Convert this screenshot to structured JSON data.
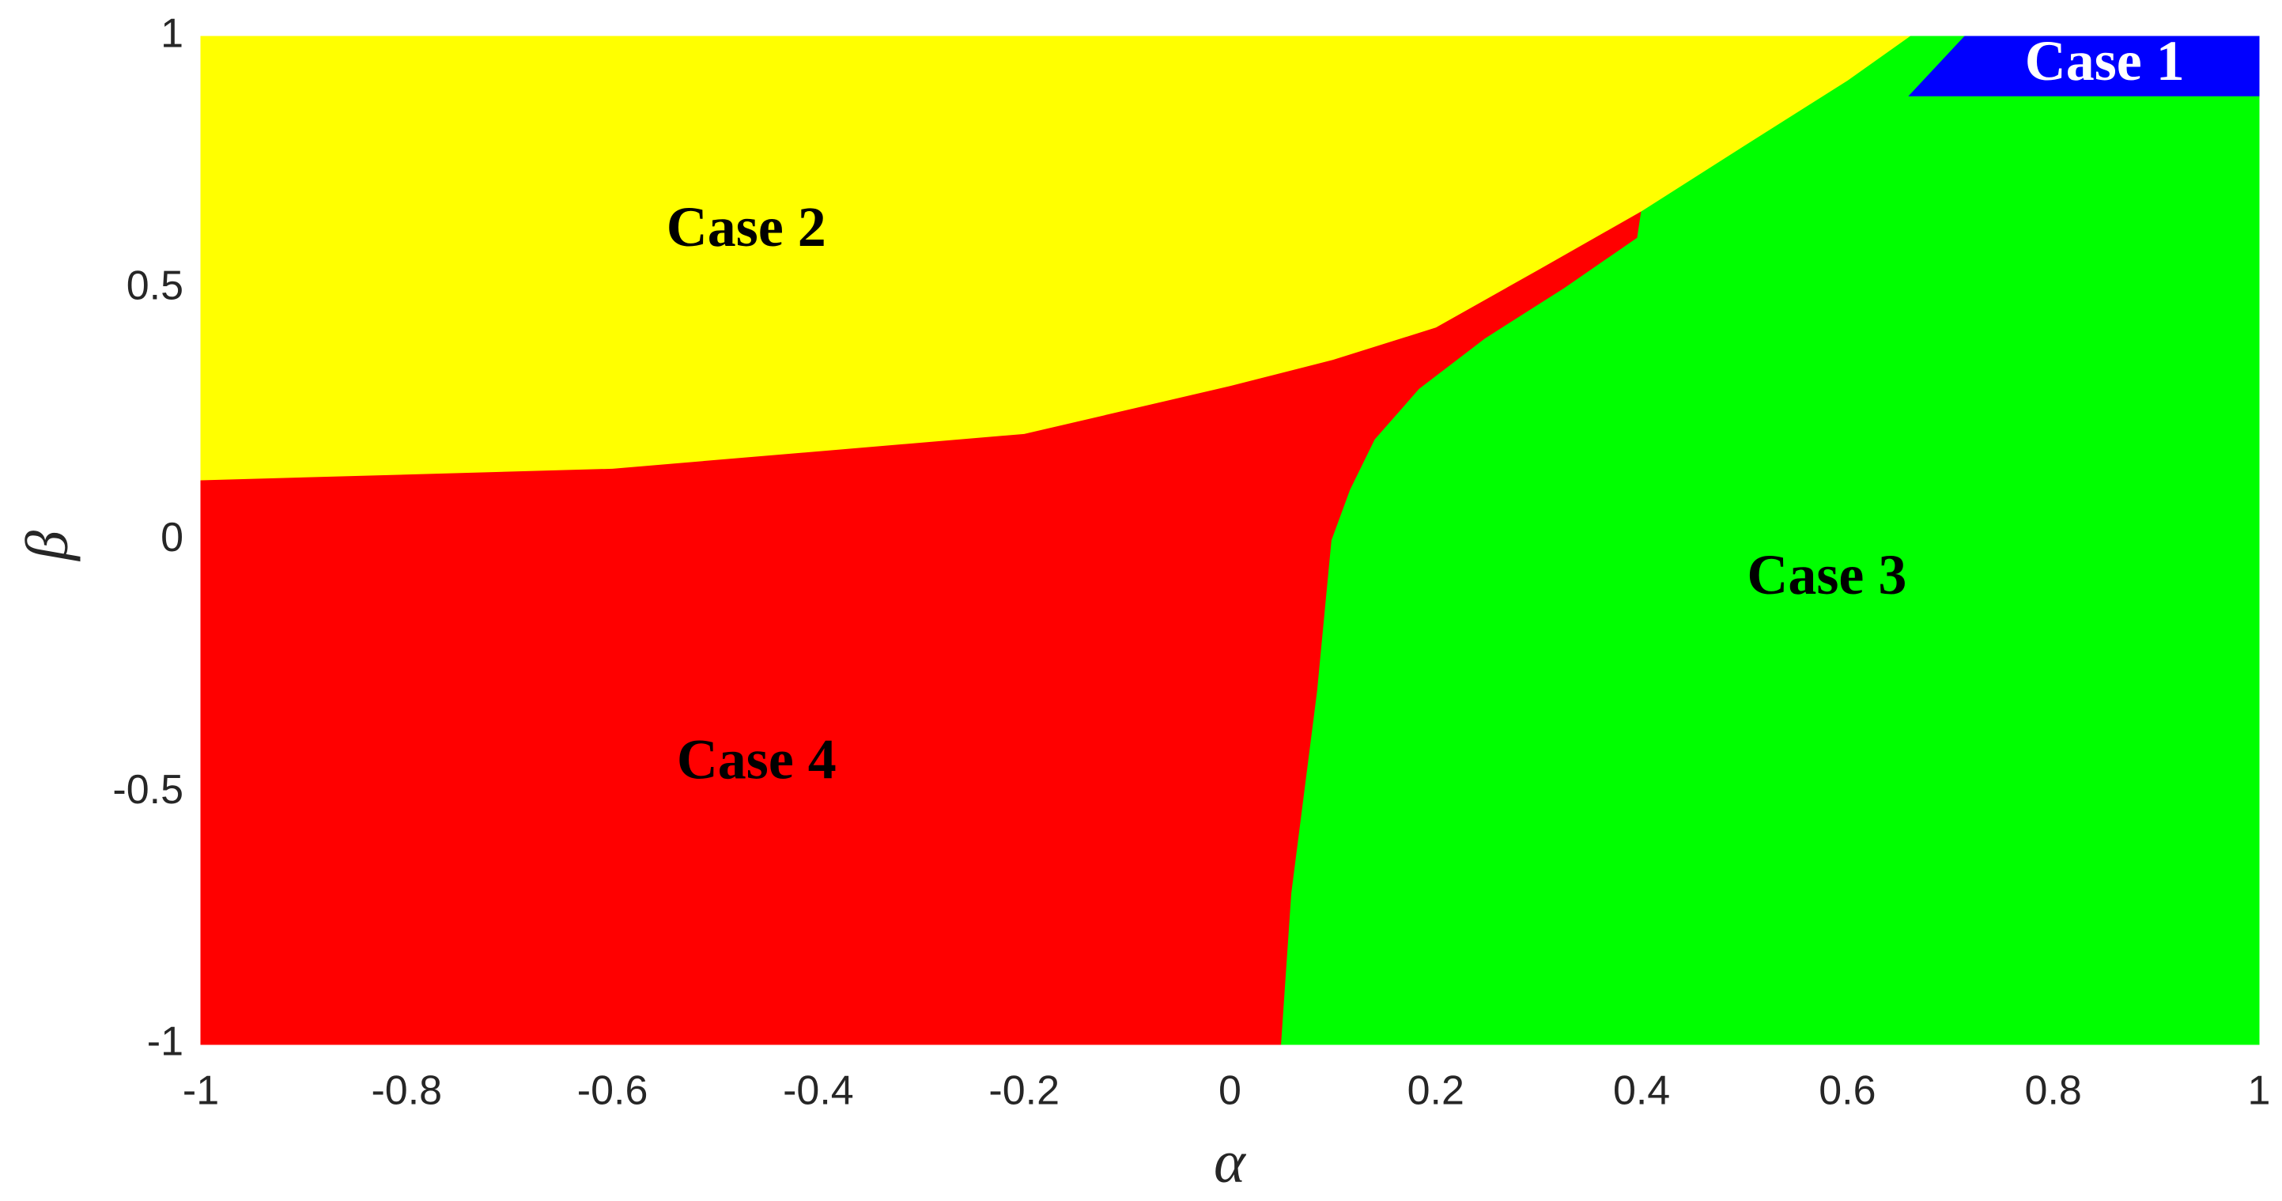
{
  "chart_data": {
    "type": "region",
    "xlabel": "α",
    "ylabel": "β",
    "xlim": [
      -1,
      1
    ],
    "ylim": [
      -1,
      1
    ],
    "xticks": [
      -1,
      -0.8,
      -0.6,
      -0.4,
      -0.2,
      0,
      0.2,
      0.4,
      0.6,
      0.8,
      1
    ],
    "yticks": [
      -1,
      -0.5,
      0,
      0.5,
      1
    ],
    "grid": false,
    "regions": [
      {
        "name": "Case 1",
        "color": "#0000ff",
        "label_color": "#ffffff",
        "x": [
          0.714,
          1,
          1,
          0.66
        ],
        "y": [
          1,
          1,
          0.882,
          0.882
        ]
      },
      {
        "name": "Case 2",
        "color": "#ffff00",
        "label_color": "#000000",
        "x": [
          -1,
          0.66,
          0.6,
          0.5,
          0.4,
          0.3,
          0.2,
          0.1,
          0,
          -0.2,
          -0.6,
          -1
        ],
        "y": [
          1,
          1,
          0.913,
          0.784,
          0.654,
          0.538,
          0.423,
          0.359,
          0.307,
          0.212,
          0.143,
          0.12
        ]
      },
      {
        "name": "Case 3",
        "color": "#00ff00",
        "label_color": "#000000",
        "x": [
          0.05,
          1,
          1,
          0.66,
          0.6,
          0.5,
          0.4,
          0.396,
          0.325,
          0.248,
          0.184,
          0.141,
          0.117,
          0.099,
          0.085,
          0.06
        ],
        "y": [
          -1,
          -1,
          1,
          1,
          0.913,
          0.784,
          0.654,
          0.6,
          0.5,
          0.4,
          0.3,
          0.2,
          0.1,
          0,
          -0.3,
          -0.7
        ]
      },
      {
        "name": "Case 4",
        "color": "#ff0000",
        "label_color": "#000000",
        "x": [
          -1,
          -0.6,
          -0.2,
          0,
          0.1,
          0.2,
          0.3,
          0.4,
          0.396,
          0.325,
          0.248,
          0.184,
          0.141,
          0.117,
          0.099,
          0.085,
          0.06,
          0.05,
          -1
        ],
        "y": [
          0.12,
          0.143,
          0.212,
          0.307,
          0.359,
          0.423,
          0.538,
          0.654,
          0.6,
          0.5,
          0.4,
          0.3,
          0.2,
          0.1,
          0,
          -0.3,
          -0.7,
          -1,
          -1
        ]
      }
    ]
  }
}
